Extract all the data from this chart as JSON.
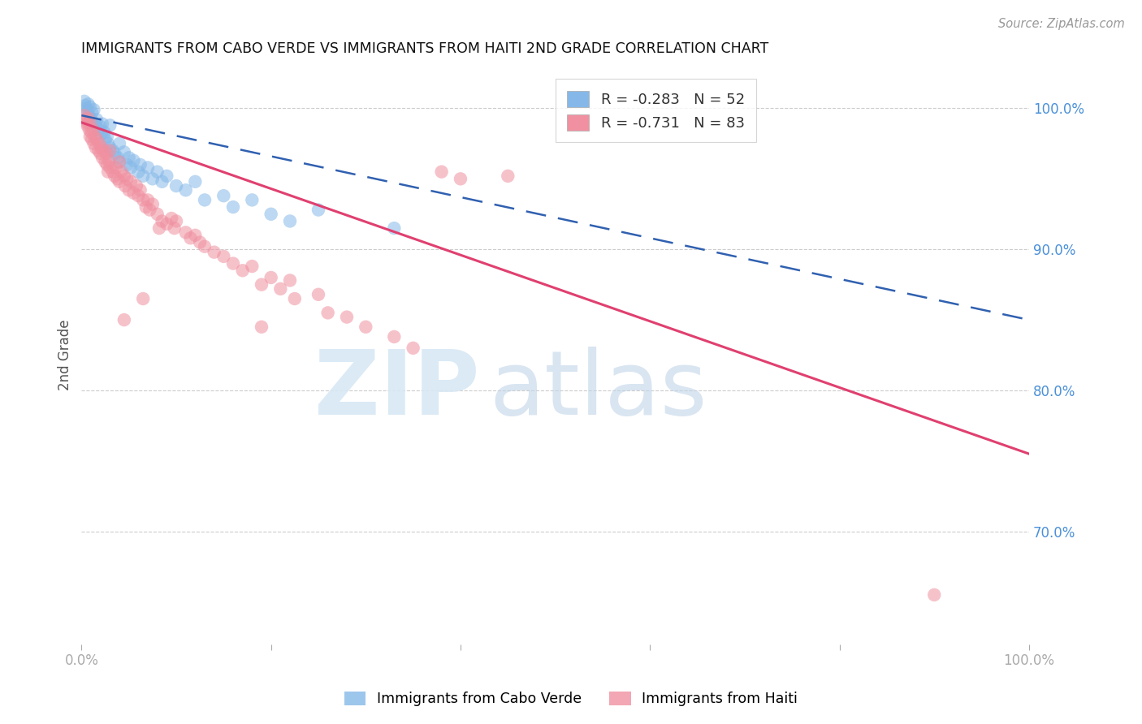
{
  "title": "IMMIGRANTS FROM CABO VERDE VS IMMIGRANTS FROM HAITI 2ND GRADE CORRELATION CHART",
  "source": "Source: ZipAtlas.com",
  "ylabel": "2nd Grade",
  "right_ytick_labels": [
    "100.0%",
    "90.0%",
    "80.0%",
    "70.0%"
  ],
  "right_ytick_vals": [
    100.0,
    90.0,
    80.0,
    70.0
  ],
  "cabo_verde_R": -0.283,
  "cabo_verde_N": 52,
  "haiti_R": -0.731,
  "haiti_N": 83,
  "cabo_verde_color": "#85b8e8",
  "haiti_color": "#f090a0",
  "cabo_verde_line_color": "#3060b0",
  "haiti_line_color": "#e04070",
  "background_color": "#ffffff",
  "xlim": [
    0,
    100
  ],
  "ylim": [
    62,
    103
  ],
  "cabo_verde_line_x0": 0.0,
  "cabo_verde_line_y0": 99.5,
  "cabo_verde_line_x1": 100.0,
  "cabo_verde_line_y1": 85.0,
  "haiti_line_x0": 0.0,
  "haiti_line_y0": 99.0,
  "haiti_line_x1": 100.0,
  "haiti_line_y1": 75.5,
  "cabo_verde_points": [
    [
      0.3,
      100.5
    ],
    [
      0.4,
      100.2
    ],
    [
      0.5,
      100.0
    ],
    [
      0.6,
      99.8
    ],
    [
      0.7,
      100.3
    ],
    [
      0.8,
      99.5
    ],
    [
      0.9,
      100.1
    ],
    [
      1.0,
      99.3
    ],
    [
      1.1,
      99.7
    ],
    [
      1.2,
      99.0
    ],
    [
      1.3,
      99.9
    ],
    [
      1.5,
      98.8
    ],
    [
      1.6,
      99.2
    ],
    [
      1.8,
      98.5
    ],
    [
      2.0,
      98.7
    ],
    [
      2.1,
      98.2
    ],
    [
      2.2,
      98.9
    ],
    [
      2.4,
      98.3
    ],
    [
      2.5,
      97.8
    ],
    [
      2.7,
      98.0
    ],
    [
      2.8,
      97.5
    ],
    [
      3.0,
      97.2
    ],
    [
      3.0,
      98.8
    ],
    [
      3.3,
      97.0
    ],
    [
      3.5,
      96.8
    ],
    [
      3.8,
      96.5
    ],
    [
      4.0,
      97.5
    ],
    [
      4.0,
      96.2
    ],
    [
      4.5,
      96.9
    ],
    [
      4.8,
      96.0
    ],
    [
      5.0,
      96.5
    ],
    [
      5.2,
      95.8
    ],
    [
      5.5,
      96.3
    ],
    [
      6.0,
      95.5
    ],
    [
      6.2,
      96.0
    ],
    [
      6.5,
      95.2
    ],
    [
      7.0,
      95.8
    ],
    [
      7.5,
      95.0
    ],
    [
      8.0,
      95.5
    ],
    [
      8.5,
      94.8
    ],
    [
      9.0,
      95.2
    ],
    [
      10.0,
      94.5
    ],
    [
      11.0,
      94.2
    ],
    [
      12.0,
      94.8
    ],
    [
      13.0,
      93.5
    ],
    [
      15.0,
      93.8
    ],
    [
      16.0,
      93.0
    ],
    [
      18.0,
      93.5
    ],
    [
      20.0,
      92.5
    ],
    [
      22.0,
      92.0
    ],
    [
      25.0,
      92.8
    ],
    [
      33.0,
      91.5
    ]
  ],
  "haiti_points": [
    [
      0.3,
      99.5
    ],
    [
      0.4,
      99.2
    ],
    [
      0.5,
      99.0
    ],
    [
      0.6,
      98.8
    ],
    [
      0.7,
      99.3
    ],
    [
      0.8,
      98.5
    ],
    [
      0.9,
      98.0
    ],
    [
      0.9,
      99.0
    ],
    [
      1.0,
      98.3
    ],
    [
      1.1,
      97.8
    ],
    [
      1.2,
      98.5
    ],
    [
      1.3,
      97.5
    ],
    [
      1.4,
      98.0
    ],
    [
      1.5,
      97.2
    ],
    [
      1.6,
      97.8
    ],
    [
      1.8,
      97.0
    ],
    [
      1.9,
      97.5
    ],
    [
      2.0,
      96.8
    ],
    [
      2.1,
      97.2
    ],
    [
      2.2,
      96.5
    ],
    [
      2.4,
      97.0
    ],
    [
      2.5,
      96.2
    ],
    [
      2.6,
      96.8
    ],
    [
      2.7,
      96.0
    ],
    [
      2.8,
      95.5
    ],
    [
      2.9,
      96.3
    ],
    [
      3.0,
      95.8
    ],
    [
      3.0,
      97.0
    ],
    [
      3.3,
      95.5
    ],
    [
      3.5,
      95.2
    ],
    [
      3.6,
      95.8
    ],
    [
      3.8,
      95.0
    ],
    [
      4.0,
      96.2
    ],
    [
      4.0,
      94.8
    ],
    [
      4.2,
      95.5
    ],
    [
      4.5,
      95.2
    ],
    [
      4.6,
      94.5
    ],
    [
      4.8,
      95.0
    ],
    [
      5.0,
      94.2
    ],
    [
      5.2,
      94.8
    ],
    [
      5.5,
      94.0
    ],
    [
      5.8,
      94.5
    ],
    [
      6.0,
      93.8
    ],
    [
      6.2,
      94.2
    ],
    [
      6.5,
      93.5
    ],
    [
      6.8,
      93.0
    ],
    [
      7.0,
      93.5
    ],
    [
      7.2,
      92.8
    ],
    [
      7.5,
      93.2
    ],
    [
      8.0,
      92.5
    ],
    [
      8.2,
      91.5
    ],
    [
      8.5,
      92.0
    ],
    [
      9.0,
      91.8
    ],
    [
      9.5,
      92.2
    ],
    [
      9.8,
      91.5
    ],
    [
      10.0,
      92.0
    ],
    [
      11.0,
      91.2
    ],
    [
      11.5,
      90.8
    ],
    [
      12.0,
      91.0
    ],
    [
      12.5,
      90.5
    ],
    [
      13.0,
      90.2
    ],
    [
      14.0,
      89.8
    ],
    [
      15.0,
      89.5
    ],
    [
      16.0,
      89.0
    ],
    [
      17.0,
      88.5
    ],
    [
      18.0,
      88.8
    ],
    [
      19.0,
      87.5
    ],
    [
      20.0,
      88.0
    ],
    [
      21.0,
      87.2
    ],
    [
      22.0,
      87.8
    ],
    [
      22.5,
      86.5
    ],
    [
      25.0,
      86.8
    ],
    [
      26.0,
      85.5
    ],
    [
      28.0,
      85.2
    ],
    [
      30.0,
      84.5
    ],
    [
      33.0,
      83.8
    ],
    [
      35.0,
      83.0
    ],
    [
      38.0,
      95.5
    ],
    [
      40.0,
      95.0
    ],
    [
      45.0,
      95.2
    ],
    [
      19.0,
      84.5
    ],
    [
      6.5,
      86.5
    ],
    [
      4.5,
      85.0
    ],
    [
      90.0,
      65.5
    ]
  ]
}
